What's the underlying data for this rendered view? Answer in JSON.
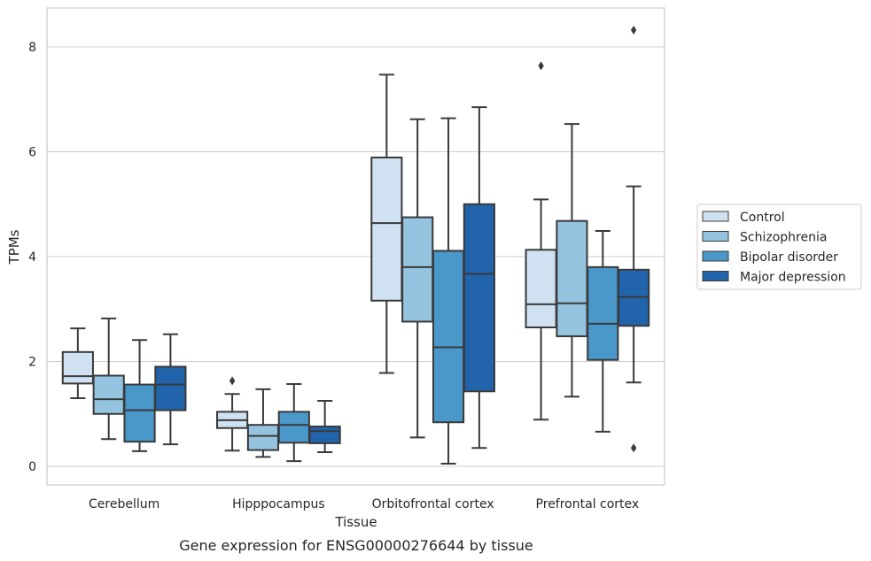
{
  "caption": "Gene expression for ENSG00000276644 by tissue",
  "chart_data": {
    "type": "box",
    "title": "",
    "xlabel": "Tissue",
    "ylabel": "TPMs",
    "ylim": [
      -0.35,
      8.75
    ],
    "yticks": [
      0,
      2,
      4,
      6,
      8
    ],
    "grid": "horizontal",
    "legend_position": "right",
    "categories": [
      "Cerebellum",
      "Hipppocampus",
      "Orbitofrontal cortex",
      "Prefrontal cortex"
    ],
    "series": [
      {
        "name": "Control",
        "color": "#d0e1f2",
        "boxes": [
          {
            "whislo": 1.3,
            "q1": 1.58,
            "med": 1.72,
            "q3": 2.18,
            "whishi": 2.63,
            "fliers": []
          },
          {
            "whislo": 0.3,
            "q1": 0.73,
            "med": 0.88,
            "q3": 1.04,
            "whishi": 1.38,
            "fliers": [
              1.63
            ]
          },
          {
            "whislo": 1.78,
            "q1": 3.16,
            "med": 4.64,
            "q3": 5.89,
            "whishi": 7.47,
            "fliers": []
          },
          {
            "whislo": 0.89,
            "q1": 2.65,
            "med": 3.09,
            "q3": 4.13,
            "whishi": 5.09,
            "fliers": [
              7.64
            ]
          }
        ]
      },
      {
        "name": "Schizophrenia",
        "color": "#94c4df",
        "boxes": [
          {
            "whislo": 0.52,
            "q1": 1.0,
            "med": 1.28,
            "q3": 1.73,
            "whishi": 2.82,
            "fliers": []
          },
          {
            "whislo": 0.18,
            "q1": 0.31,
            "med": 0.58,
            "q3": 0.79,
            "whishi": 1.47,
            "fliers": []
          },
          {
            "whislo": 0.55,
            "q1": 2.76,
            "med": 3.8,
            "q3": 4.75,
            "whishi": 6.62,
            "fliers": []
          },
          {
            "whislo": 1.33,
            "q1": 2.48,
            "med": 3.11,
            "q3": 4.68,
            "whishi": 6.53,
            "fliers": []
          }
        ]
      },
      {
        "name": "Bipolar disorder",
        "color": "#4a98c9",
        "boxes": [
          {
            "whislo": 0.29,
            "q1": 0.47,
            "med": 1.07,
            "q3": 1.56,
            "whishi": 2.41,
            "fliers": []
          },
          {
            "whislo": 0.1,
            "q1": 0.45,
            "med": 0.79,
            "q3": 1.04,
            "whishi": 1.57,
            "fliers": []
          },
          {
            "whislo": 0.05,
            "q1": 0.84,
            "med": 2.27,
            "q3": 4.11,
            "whishi": 6.64,
            "fliers": []
          },
          {
            "whislo": 0.66,
            "q1": 2.03,
            "med": 2.72,
            "q3": 3.8,
            "whishi": 4.49,
            "fliers": []
          }
        ]
      },
      {
        "name": "Major depression",
        "color": "#2164ab",
        "boxes": [
          {
            "whislo": 0.42,
            "q1": 1.07,
            "med": 1.56,
            "q3": 1.9,
            "whishi": 2.52,
            "fliers": []
          },
          {
            "whislo": 0.27,
            "q1": 0.44,
            "med": 0.67,
            "q3": 0.76,
            "whishi": 1.25,
            "fliers": []
          },
          {
            "whislo": 0.35,
            "q1": 1.43,
            "med": 3.67,
            "q3": 5.0,
            "whishi": 6.85,
            "fliers": []
          },
          {
            "whislo": 1.6,
            "q1": 2.68,
            "med": 3.23,
            "q3": 3.75,
            "whishi": 5.34,
            "fliers": [
              0.35,
              8.32
            ]
          }
        ]
      }
    ]
  }
}
